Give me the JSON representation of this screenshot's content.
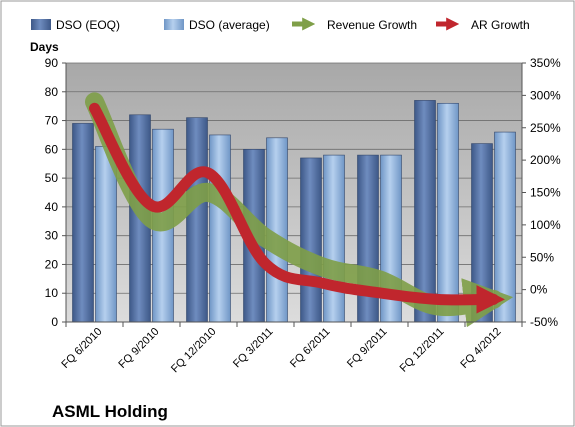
{
  "company_label": "ASML Holding",
  "chart_data": {
    "type": "bar",
    "title": "",
    "left_axis_title": "Days",
    "categories": [
      "FQ 6/2010",
      "FQ 9/2010",
      "FQ 12/2010",
      "FQ 3/2011",
      "FQ 6/2011",
      "FQ 9/2011",
      "FQ 12/2011",
      "FQ 4/2012"
    ],
    "series": [
      {
        "name": "DSO (EOQ)",
        "type": "bar",
        "axis": "left",
        "color": "#4f6d9f",
        "values": [
          69,
          72,
          71,
          60,
          57,
          58,
          77,
          62
        ]
      },
      {
        "name": "DSO (average)",
        "type": "bar",
        "axis": "left",
        "color": "#8fb3dc",
        "values": [
          61,
          67,
          65,
          64,
          58,
          58,
          76,
          66
        ]
      },
      {
        "name": "Revenue Growth",
        "type": "line",
        "axis": "right",
        "color": "#7f9f48",
        "values": [
          290,
          110,
          150,
          80,
          35,
          15,
          -25,
          -15
        ]
      },
      {
        "name": "AR Growth",
        "type": "line",
        "axis": "right",
        "color": "#c0262d",
        "values": [
          280,
          130,
          180,
          40,
          10,
          -5,
          -15,
          -15
        ]
      }
    ],
    "left_axis": {
      "min": 0,
      "max": 90,
      "step": 10,
      "ticks": [
        "0",
        "10",
        "20",
        "30",
        "40",
        "50",
        "60",
        "70",
        "80",
        "90"
      ]
    },
    "right_axis": {
      "min": -50,
      "max": 350,
      "step": 50,
      "ticks": [
        "-50%",
        "0%",
        "50%",
        "100%",
        "150%",
        "200%",
        "250%",
        "300%",
        "350%"
      ]
    },
    "grid": true,
    "legend_position": "top"
  }
}
